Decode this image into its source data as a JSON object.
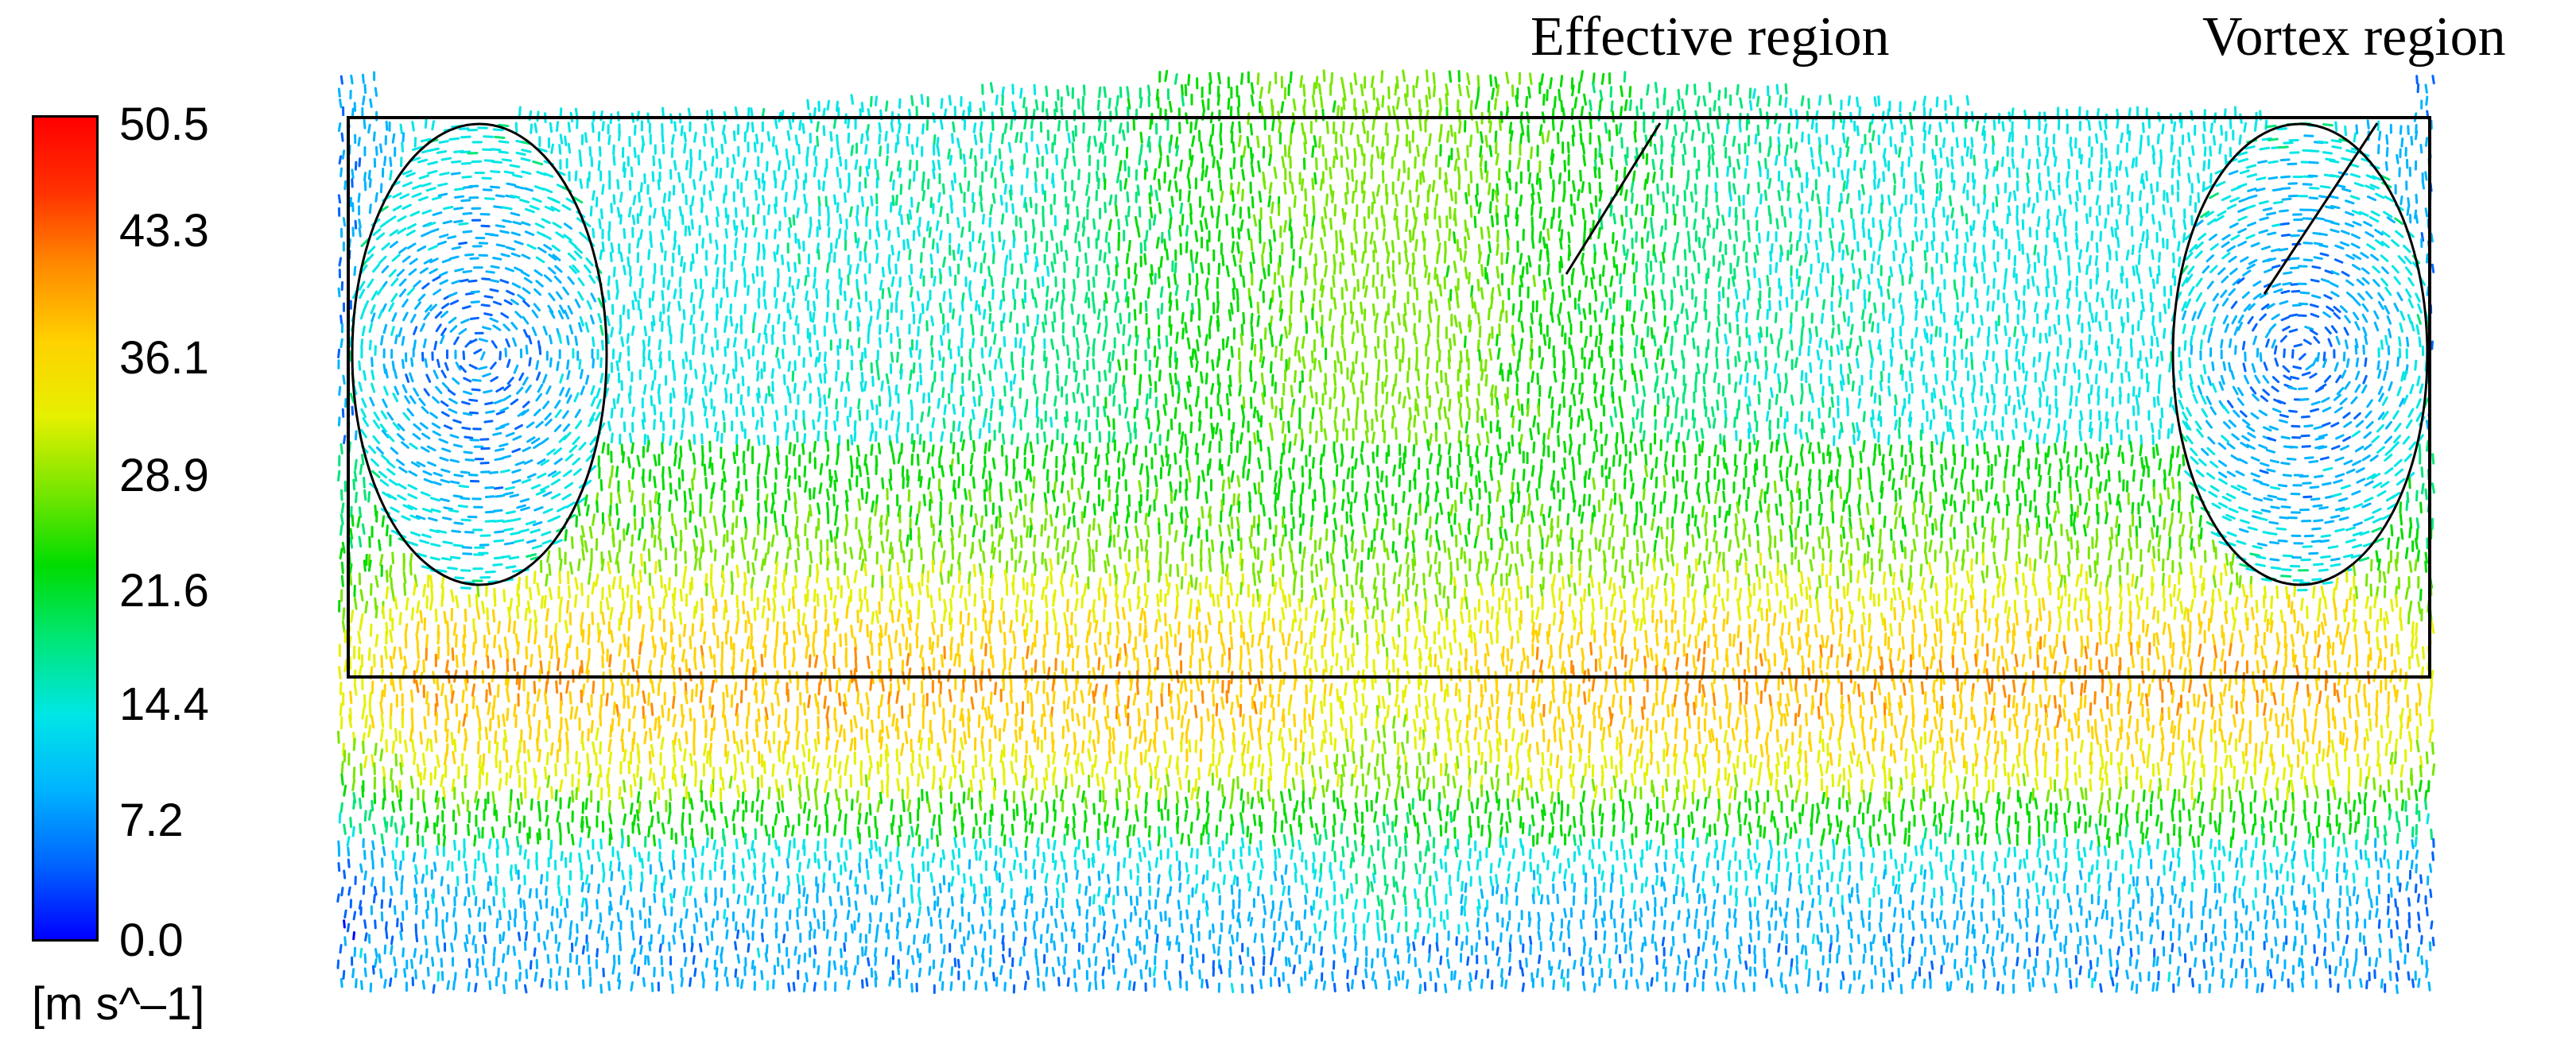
{
  "legend": {
    "ticks": [
      "50.5",
      "43.3",
      "36.1",
      "28.9",
      "21.6",
      "14.4",
      "7.2",
      "0.0"
    ],
    "unit": "[m s^–1]",
    "colors": [
      "#0000ff",
      "#0064ff",
      "#00b4ff",
      "#00e6e6",
      "#00e678",
      "#00dc00",
      "#78e600",
      "#e6f000",
      "#ffd200",
      "#ff8c00",
      "#ff3200",
      "#ff0000"
    ]
  },
  "annotations": {
    "effective_region": "Effective region",
    "vortex_region": "Vortex region"
  }
}
